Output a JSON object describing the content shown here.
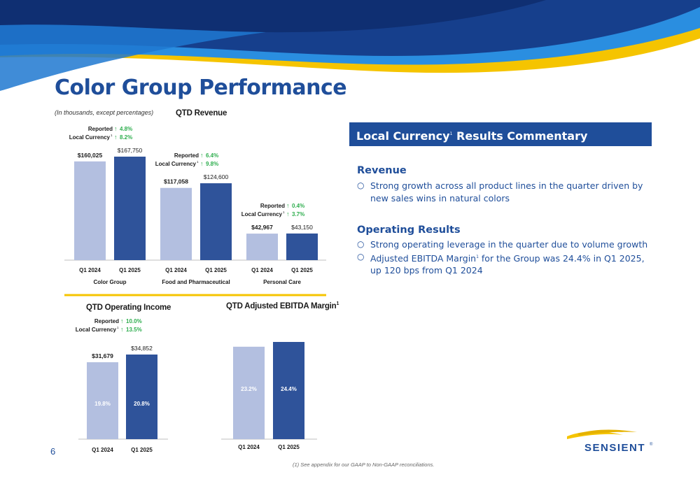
{
  "page": {
    "title": "Color Group Performance",
    "units_note": "(In thousands, except percentages)",
    "page_number": "6",
    "footnote": "(1) See appendix for our GAAP to Non-GAAP reconciliations.",
    "colors": {
      "light_bar": "#b3bfe0",
      "dark_bar": "#2f539a",
      "accent_yellow": "#f5c400",
      "navy": "#1f4e9a",
      "green_arrow": "#2eae4e"
    }
  },
  "commentary": {
    "header": "Local Currency",
    "header_sup": "1",
    "header_rest": " Results Commentary",
    "sections": [
      {
        "heading": "Revenue",
        "bullets": [
          {
            "text": "Strong growth across all product lines in the quarter driven by new sales wins in natural colors",
            "sup": "",
            "rest": ""
          }
        ]
      },
      {
        "heading": "Operating Results",
        "bullets": [
          {
            "text": "Strong operating leverage in the quarter due to volume growth",
            "sup": "",
            "rest": ""
          },
          {
            "text": "Adjusted EBITDA Margin",
            "sup": "1",
            "rest": " for the Group was 24.4% in Q1 2025, up 120 bps from Q1 2024"
          }
        ]
      }
    ]
  },
  "logo": {
    "text": "SENSIENT",
    "mark": "®"
  },
  "chart_data": [
    {
      "type": "bar",
      "title": "QTD Revenue",
      "categories": [
        "Q1 2024",
        "Q1 2025"
      ],
      "groups": [
        {
          "name": "Color Group",
          "values": [
            160025,
            167750
          ],
          "labels": [
            "$160,025",
            "$167,750"
          ],
          "reported_label": "Reported",
          "reported_value": "4.8%",
          "local_label": "Local Currency",
          "local_sup": "1",
          "local_value": "8.2%"
        },
        {
          "name": "Food and Pharmaceutical",
          "values": [
            117058,
            124600
          ],
          "labels": [
            "$117,058",
            "$124,600"
          ],
          "reported_label": "Reported",
          "reported_value": "6.4%",
          "local_label": "Local Currency",
          "local_sup": "1",
          "local_value": "9.8%"
        },
        {
          "name": "Personal Care",
          "values": [
            42967,
            43150
          ],
          "labels": [
            "$42,967",
            "$43,150"
          ],
          "reported_label": "Reported",
          "reported_value": "0.4%",
          "local_label": "Local Currency",
          "local_sup": "1",
          "local_value": "3.7%"
        }
      ],
      "ylim": [
        0,
        170000
      ],
      "grid": false
    },
    {
      "type": "bar",
      "title": "QTD Operating Income",
      "categories": [
        "Q1 2024",
        "Q1 2025"
      ],
      "values": [
        31679,
        34852
      ],
      "labels": [
        "$31,679",
        "$34,852"
      ],
      "inner_labels": [
        "19.8%",
        "20.8%"
      ],
      "reported_label": "Reported",
      "reported_value": "10.0%",
      "local_label": "Local Currency",
      "local_sup": "1",
      "local_value": "13.5%",
      "ylim": [
        0,
        36000
      ],
      "grid": false
    },
    {
      "type": "bar",
      "title": "QTD Adjusted EBITDA Margin",
      "title_sup": "1",
      "categories": [
        "Q1 2024",
        "Q1 2025"
      ],
      "values": [
        23.2,
        24.4
      ],
      "inner_labels": [
        "23.2%",
        "24.4%"
      ],
      "ylim": [
        0,
        25
      ],
      "grid": false
    }
  ]
}
